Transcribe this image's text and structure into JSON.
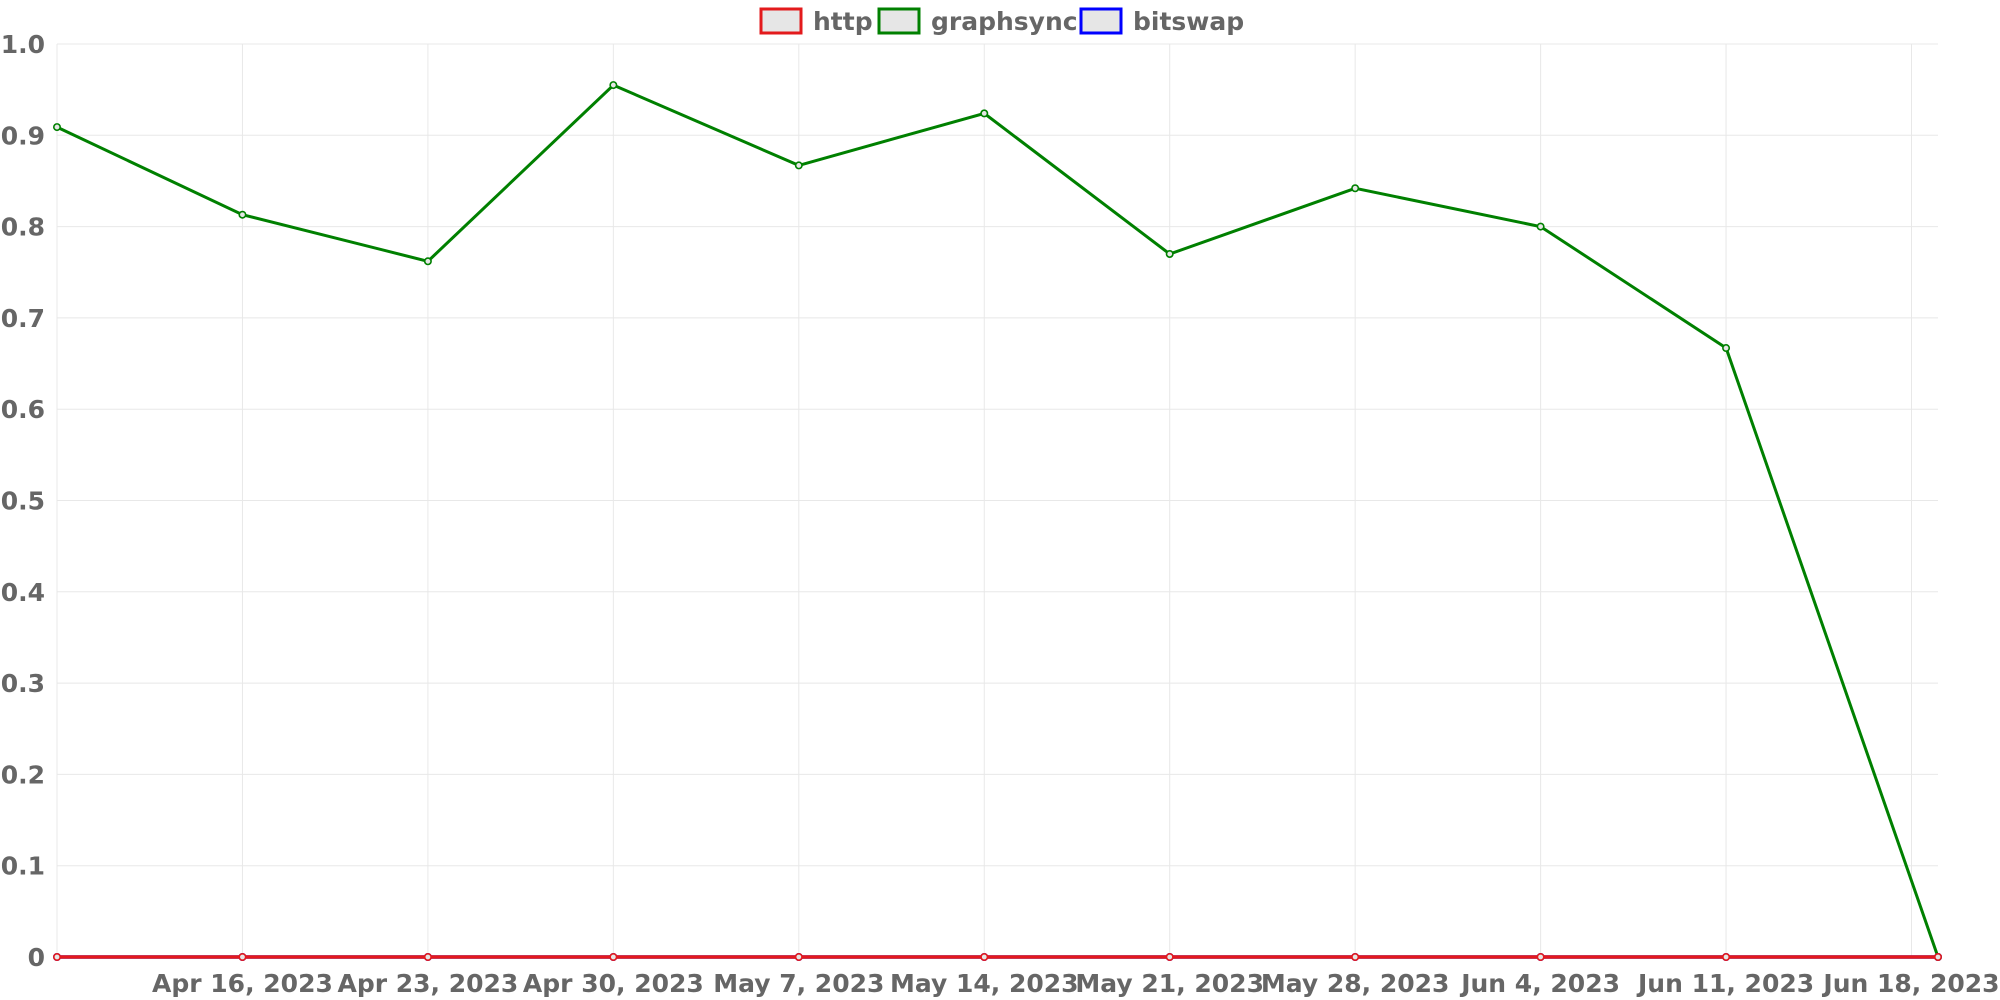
{
  "chart_data": {
    "type": "line",
    "title": "",
    "xlabel": "",
    "ylabel": "",
    "x_axis_type": "time",
    "xlim": [
      "2023-04-09",
      "2023-06-19"
    ],
    "ylim": [
      0,
      1
    ],
    "y_ticks": [
      "0",
      "0.1",
      "0.2",
      "0.3",
      "0.4",
      "0.5",
      "0.6",
      "0.7",
      "0.8",
      "0.9",
      "1.0"
    ],
    "y_tick_values": [
      0,
      0.1,
      0.2,
      0.3,
      0.4,
      0.5,
      0.6,
      0.7,
      0.8,
      0.9,
      1.0
    ],
    "x_ticks": [
      {
        "label": "Apr 16, 2023",
        "date": "2023-04-16"
      },
      {
        "label": "Apr 23, 2023",
        "date": "2023-04-23"
      },
      {
        "label": "Apr 30, 2023",
        "date": "2023-04-30"
      },
      {
        "label": "May 7, 2023",
        "date": "2023-05-07"
      },
      {
        "label": "May 14, 2023",
        "date": "2023-05-14"
      },
      {
        "label": "May 21, 2023",
        "date": "2023-05-21"
      },
      {
        "label": "May 28, 2023",
        "date": "2023-05-28"
      },
      {
        "label": "Jun 4, 2023",
        "date": "2023-06-04"
      },
      {
        "label": "Jun 11, 2023",
        "date": "2023-06-11"
      },
      {
        "label": "Jun 18, 2023",
        "date": "2023-06-18"
      }
    ],
    "grid": true,
    "legend_position": "top-center",
    "x": [
      "2023-04-09",
      "2023-04-16",
      "2023-04-23",
      "2023-04-30",
      "2023-05-07",
      "2023-05-14",
      "2023-05-21",
      "2023-05-28",
      "2023-06-04",
      "2023-06-11",
      "2023-06-19"
    ],
    "series": [
      {
        "name": "http",
        "color": "#e31a1c",
        "values": [
          0,
          0,
          0,
          0,
          0,
          0,
          0,
          0,
          0,
          0,
          0
        ]
      },
      {
        "name": "graphsync",
        "color": "#008000",
        "values": [
          0.909,
          0.813,
          0.762,
          0.955,
          0.867,
          0.924,
          0.77,
          0.842,
          0.8,
          0.667,
          0
        ]
      },
      {
        "name": "bitswap",
        "color": "#0000ff",
        "values": [
          0,
          0,
          0,
          0,
          0,
          0,
          0,
          0,
          0,
          0,
          0
        ]
      }
    ]
  }
}
